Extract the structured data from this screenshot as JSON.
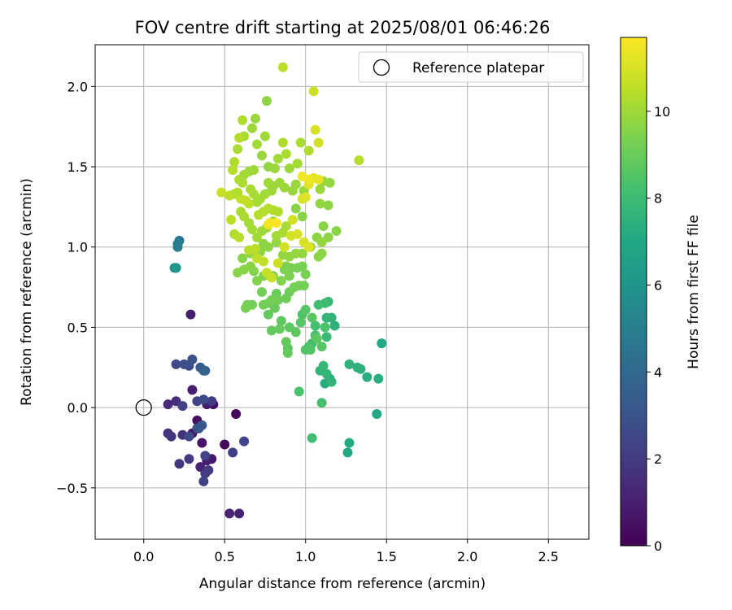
{
  "chart_data": {
    "type": "scatter",
    "title": "FOV centre drift starting at 2025/08/01 06:46:26",
    "xlabel": "Angular distance from reference (arcmin)",
    "ylabel": "Rotation from reference (arcmin)",
    "xlim": [
      -0.3,
      2.75
    ],
    "ylim": [
      -0.82,
      2.26
    ],
    "xticks": [
      0.0,
      0.5,
      1.0,
      1.5,
      2.0,
      2.5
    ],
    "xtick_labels": [
      "0.0",
      "0.5",
      "1.0",
      "1.5",
      "2.0",
      "2.5"
    ],
    "yticks": [
      -0.5,
      0.0,
      0.5,
      1.0,
      1.5,
      2.0
    ],
    "ytick_labels": [
      "−0.5",
      "0.0",
      "0.5",
      "1.0",
      "1.5",
      "2.0"
    ],
    "grid": true,
    "legend": {
      "placement": "top-right",
      "entries": [
        "Reference platepar"
      ]
    },
    "reference_point": {
      "x": 0.0,
      "y": 0.0,
      "label": "Reference platepar"
    },
    "colorbar": {
      "label": "Hours from first FF file",
      "colormap": "viridis",
      "range": [
        0,
        11.7
      ],
      "ticks": [
        0,
        2,
        4,
        6,
        8,
        10
      ],
      "tick_labels": [
        "0",
        "2",
        "4",
        "6",
        "8",
        "10"
      ]
    },
    "points_columns": [
      "x",
      "y",
      "hours"
    ],
    "points": [
      [
        0.3,
        -0.16,
        0.6
      ],
      [
        0.36,
        -0.22,
        0.6
      ],
      [
        0.33,
        -0.08,
        0.5
      ],
      [
        0.43,
        0.02,
        0.4
      ],
      [
        0.5,
        -0.23,
        0.3
      ],
      [
        0.57,
        -0.04,
        0.2
      ],
      [
        0.42,
        -0.32,
        0.8
      ],
      [
        0.39,
        -0.33,
        0.9
      ],
      [
        0.53,
        -0.66,
        1.2
      ],
      [
        0.59,
        -0.66,
        1.1
      ],
      [
        0.35,
        -0.37,
        1.1
      ],
      [
        0.39,
        0.02,
        0.9
      ],
      [
        0.3,
        0.11,
        1.0
      ],
      [
        0.29,
        0.58,
        1.0
      ],
      [
        0.15,
        0.02,
        1.4
      ],
      [
        0.2,
        0.04,
        1.5
      ],
      [
        0.24,
        -0.17,
        1.7
      ],
      [
        0.17,
        -0.18,
        1.8
      ],
      [
        0.15,
        -0.16,
        1.6
      ],
      [
        0.22,
        -0.35,
        1.8
      ],
      [
        0.28,
        -0.32,
        1.9
      ],
      [
        0.38,
        -0.41,
        2.0
      ],
      [
        0.37,
        -0.46,
        2.2
      ],
      [
        0.4,
        -0.39,
        2.1
      ],
      [
        0.55,
        -0.28,
        2.2
      ],
      [
        0.62,
        -0.21,
        2.4
      ],
      [
        0.42,
        0.04,
        2.0
      ],
      [
        0.33,
        0.04,
        2.4
      ],
      [
        0.37,
        0.05,
        2.6
      ],
      [
        0.24,
        0.01,
        2.3
      ],
      [
        0.33,
        -0.13,
        2.6
      ],
      [
        0.38,
        -0.3,
        2.3
      ],
      [
        0.28,
        -0.18,
        2.6
      ],
      [
        0.2,
        0.27,
        2.5
      ],
      [
        0.25,
        0.27,
        2.8
      ],
      [
        0.3,
        0.3,
        2.9
      ],
      [
        0.28,
        0.26,
        2.6
      ],
      [
        0.35,
        0.25,
        3.3
      ],
      [
        0.37,
        0.23,
        3.4
      ],
      [
        0.38,
        0.23,
        3.6
      ],
      [
        0.34,
        -0.13,
        3.0
      ],
      [
        0.36,
        -0.11,
        3.2
      ],
      [
        0.22,
        1.04,
        4.6
      ],
      [
        0.21,
        1.02,
        4.8
      ],
      [
        0.21,
        1.0,
        4.9
      ],
      [
        0.2,
        0.87,
        5.8
      ],
      [
        0.19,
        0.87,
        5.9
      ],
      [
        0.2,
        0.87,
        6.1
      ],
      [
        1.47,
        0.4,
        7.0
      ],
      [
        1.44,
        -0.04,
        7.0
      ],
      [
        1.26,
        -0.28,
        7.0
      ],
      [
        1.27,
        -0.22,
        7.1
      ],
      [
        1.45,
        0.18,
        7.3
      ],
      [
        1.38,
        0.19,
        7.3
      ],
      [
        1.34,
        0.24,
        7.4
      ],
      [
        1.32,
        0.25,
        7.5
      ],
      [
        1.27,
        0.27,
        7.5
      ],
      [
        1.15,
        0.18,
        7.3
      ],
      [
        1.12,
        0.15,
        7.2
      ],
      [
        1.16,
        0.16,
        7.6
      ],
      [
        1.13,
        0.21,
        7.7
      ],
      [
        1.09,
        0.23,
        7.6
      ],
      [
        1.11,
        0.26,
        7.8
      ],
      [
        1.13,
        0.44,
        7.9
      ],
      [
        1.18,
        0.51,
        7.5
      ],
      [
        1.16,
        0.56,
        7.6
      ],
      [
        1.13,
        0.56,
        7.7
      ],
      [
        1.14,
        0.66,
        7.8
      ],
      [
        1.12,
        0.65,
        8.0
      ],
      [
        1.08,
        0.64,
        8.1
      ],
      [
        1.06,
        0.51,
        8.2
      ],
      [
        1.12,
        0.5,
        8.3
      ],
      [
        1.06,
        0.45,
        8.3
      ],
      [
        1.04,
        0.4,
        8.1
      ],
      [
        1.02,
        0.38,
        8.4
      ],
      [
        1.0,
        0.36,
        8.5
      ],
      [
        1.03,
        0.36,
        8.5
      ],
      [
        1.1,
        0.38,
        8.6
      ],
      [
        1.07,
        0.43,
        8.7
      ],
      [
        1.04,
        0.56,
        8.7
      ],
      [
        1.0,
        0.61,
        8.6
      ],
      [
        0.98,
        0.58,
        8.4
      ],
      [
        0.97,
        0.53,
        8.6
      ],
      [
        0.94,
        0.47,
        8.8
      ],
      [
        0.9,
        0.5,
        8.8
      ],
      [
        0.85,
        0.54,
        8.8
      ],
      [
        0.84,
        0.49,
        8.9
      ],
      [
        0.88,
        0.41,
        8.9
      ],
      [
        0.89,
        0.37,
        8.7
      ],
      [
        0.96,
        0.1,
        8.3
      ],
      [
        1.1,
        0.03,
        8.2
      ],
      [
        1.04,
        -0.19,
        8.1
      ],
      [
        0.89,
        0.34,
        8.9
      ],
      [
        0.79,
        0.48,
        8.9
      ],
      [
        0.77,
        0.58,
        8.9
      ],
      [
        0.77,
        0.65,
        9.0
      ],
      [
        0.81,
        0.62,
        9.0
      ],
      [
        0.83,
        0.67,
        9.1
      ],
      [
        0.82,
        0.71,
        9.0
      ],
      [
        0.79,
        0.67,
        9.2
      ],
      [
        0.74,
        0.64,
        9.2
      ],
      [
        0.67,
        0.64,
        9.2
      ],
      [
        0.73,
        0.72,
        9.2
      ],
      [
        0.63,
        0.62,
        9.3
      ],
      [
        0.64,
        0.64,
        9.2
      ],
      [
        0.88,
        0.68,
        9.1
      ],
      [
        0.9,
        0.72,
        9.1
      ],
      [
        0.93,
        0.75,
        9.2
      ],
      [
        0.96,
        0.76,
        9.2
      ],
      [
        0.99,
        0.76,
        9.2
      ],
      [
        1.0,
        0.83,
        9.3
      ],
      [
        0.98,
        0.88,
        9.3
      ],
      [
        0.95,
        0.87,
        9.3
      ],
      [
        0.91,
        0.87,
        9.3
      ],
      [
        0.88,
        0.88,
        9.4
      ],
      [
        0.87,
        0.86,
        9.4
      ],
      [
        0.9,
        0.82,
        9.4
      ],
      [
        0.85,
        0.79,
        9.5
      ],
      [
        0.8,
        0.82,
        9.5
      ],
      [
        0.74,
        0.82,
        9.5
      ],
      [
        0.7,
        0.79,
        9.5
      ],
      [
        0.68,
        0.85,
        9.5
      ],
      [
        0.66,
        0.88,
        9.6
      ],
      [
        0.62,
        0.86,
        9.6
      ],
      [
        0.61,
        0.93,
        9.6
      ],
      [
        0.58,
        0.84,
        9.6
      ],
      [
        0.66,
        0.96,
        9.7
      ],
      [
        0.72,
        0.97,
        9.7
      ],
      [
        0.77,
        1.0,
        9.7
      ],
      [
        0.74,
        1.02,
        9.7
      ],
      [
        0.82,
        1.03,
        9.8
      ],
      [
        0.86,
        0.95,
        9.8
      ],
      [
        0.9,
        0.94,
        9.8
      ],
      [
        0.94,
        0.96,
        9.8
      ],
      [
        0.98,
        0.96,
        9.8
      ],
      [
        1.03,
        1.0,
        9.8
      ],
      [
        1.08,
        0.94,
        9.7
      ],
      [
        1.1,
        0.96,
        9.7
      ],
      [
        1.07,
        1.06,
        9.7
      ],
      [
        1.1,
        1.03,
        9.8
      ],
      [
        1.14,
        1.06,
        9.7
      ],
      [
        1.19,
        1.1,
        9.6
      ],
      [
        1.11,
        1.13,
        9.6
      ],
      [
        1.14,
        1.26,
        9.7
      ],
      [
        1.09,
        1.27,
        9.8
      ],
      [
        1.09,
        1.36,
        9.9
      ],
      [
        1.11,
        1.41,
        9.9
      ],
      [
        1.15,
        1.4,
        9.8
      ],
      [
        0.94,
        1.24,
        9.6
      ],
      [
        0.98,
        1.19,
        9.6
      ],
      [
        0.99,
        1.35,
        9.9
      ],
      [
        0.94,
        1.39,
        9.9
      ],
      [
        0.92,
        1.35,
        9.9
      ],
      [
        0.87,
        1.37,
        9.9
      ],
      [
        0.84,
        1.4,
        10.0
      ],
      [
        0.8,
        1.38,
        10.0
      ],
      [
        0.79,
        1.35,
        10.0
      ],
      [
        0.77,
        1.4,
        10.0
      ],
      [
        0.75,
        1.33,
        10.1
      ],
      [
        0.72,
        1.3,
        10.1
      ],
      [
        0.7,
        1.28,
        10.1
      ],
      [
        0.68,
        1.33,
        10.2
      ],
      [
        0.66,
        1.36,
        10.2
      ],
      [
        0.61,
        1.4,
        10.2
      ],
      [
        0.58,
        1.34,
        10.3
      ],
      [
        0.56,
        1.33,
        10.3
      ],
      [
        0.6,
        1.22,
        10.2
      ],
      [
        0.62,
        1.19,
        10.2
      ],
      [
        0.65,
        1.15,
        10.1
      ],
      [
        0.67,
        1.11,
        10.1
      ],
      [
        0.7,
        1.06,
        10.1
      ],
      [
        0.73,
        1.1,
        10.0
      ],
      [
        0.76,
        1.12,
        10.0
      ],
      [
        0.8,
        1.16,
        10.0
      ],
      [
        0.82,
        1.07,
        10.1
      ],
      [
        0.86,
        1.09,
        10.2
      ],
      [
        0.88,
        1.13,
        10.2
      ],
      [
        0.83,
        1.22,
        10.3
      ],
      [
        0.8,
        1.23,
        10.3
      ],
      [
        0.77,
        1.24,
        10.4
      ],
      [
        0.74,
        1.22,
        10.4
      ],
      [
        0.71,
        1.2,
        10.4
      ],
      [
        0.65,
        1.27,
        10.5
      ],
      [
        0.63,
        1.29,
        10.6
      ],
      [
        0.6,
        1.3,
        10.6
      ],
      [
        0.53,
        1.32,
        10.5
      ],
      [
        0.48,
        1.34,
        10.7
      ],
      [
        0.54,
        1.17,
        10.5
      ],
      [
        0.59,
        1.06,
        10.4
      ],
      [
        0.56,
        1.08,
        10.3
      ],
      [
        0.65,
        0.98,
        10.4
      ],
      [
        0.69,
        0.99,
        10.5
      ],
      [
        0.7,
        0.93,
        10.6
      ],
      [
        0.74,
        0.91,
        10.6
      ],
      [
        0.76,
        0.84,
        10.7
      ],
      [
        0.79,
        0.81,
        10.7
      ],
      [
        0.83,
        0.9,
        10.8
      ],
      [
        0.87,
        1.0,
        10.9
      ],
      [
        0.92,
        1.17,
        10.9
      ],
      [
        0.91,
        1.07,
        10.9
      ],
      [
        0.95,
        1.08,
        11.0
      ],
      [
        0.99,
        1.03,
        11.0
      ],
      [
        1.02,
        1.0,
        11.1
      ],
      [
        0.98,
        1.3,
        11.0
      ],
      [
        1.0,
        1.31,
        11.1
      ],
      [
        1.02,
        1.39,
        11.2
      ],
      [
        1.05,
        1.43,
        11.3
      ],
      [
        1.08,
        1.42,
        11.3
      ],
      [
        1.02,
        1.42,
        11.4
      ],
      [
        0.98,
        1.44,
        11.5
      ],
      [
        0.77,
        1.14,
        11.4
      ],
      [
        0.78,
        1.15,
        11.5
      ],
      [
        0.82,
        1.15,
        11.6
      ],
      [
        1.06,
        1.73,
        11.0
      ],
      [
        1.08,
        1.65,
        10.9
      ],
      [
        1.05,
        1.97,
        10.8
      ],
      [
        0.86,
        2.12,
        10.5
      ],
      [
        1.33,
        1.54,
        10.4
      ],
      [
        1.02,
        1.6,
        10.3
      ],
      [
        0.97,
        1.65,
        10.2
      ],
      [
        0.95,
        1.52,
        10.1
      ],
      [
        0.9,
        1.49,
        10.0
      ],
      [
        0.88,
        1.58,
        10.2
      ],
      [
        0.86,
        1.65,
        10.3
      ],
      [
        0.83,
        1.55,
        10.1
      ],
      [
        0.81,
        1.49,
        9.9
      ],
      [
        0.77,
        1.5,
        9.8
      ],
      [
        0.75,
        1.69,
        10.0
      ],
      [
        0.73,
        1.57,
        9.9
      ],
      [
        0.7,
        1.64,
        10.1
      ],
      [
        0.69,
        1.8,
        9.9
      ],
      [
        0.67,
        1.74,
        10.0
      ],
      [
        0.62,
        1.69,
        10.2
      ],
      [
        0.59,
        1.68,
        10.4
      ],
      [
        0.61,
        1.79,
        10.3
      ],
      [
        0.58,
        1.61,
        10.2
      ],
      [
        0.56,
        1.53,
        10.3
      ],
      [
        0.55,
        1.48,
        10.4
      ],
      [
        0.59,
        1.42,
        10.2
      ],
      [
        0.62,
        1.45,
        10.1
      ],
      [
        0.65,
        1.47,
        10.0
      ],
      [
        0.68,
        1.48,
        10.0
      ],
      [
        0.76,
        1.91,
        9.7
      ]
    ]
  }
}
